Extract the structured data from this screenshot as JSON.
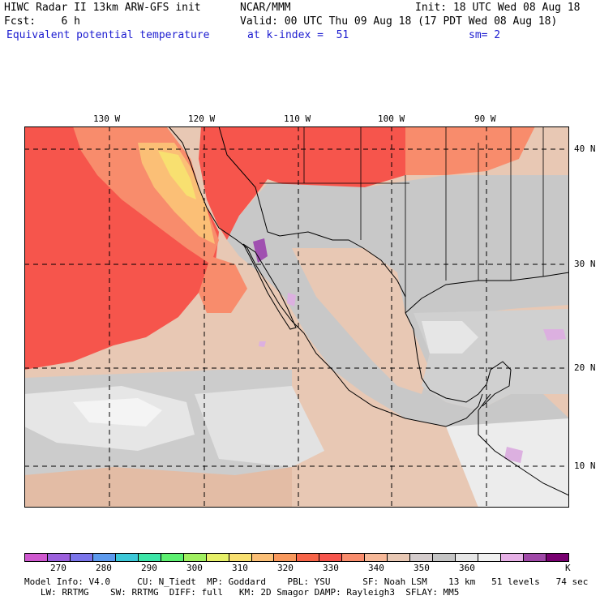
{
  "header": {
    "line1_left": "HIWC Radar II 13km ARW-GFS init",
    "line1_mid": "NCAR/MMM",
    "line1_right": "Init: 18 UTC Wed 08 Aug 18",
    "line2_left": "Fcst:    6 h",
    "line2_right": "Valid: 00 UTC Thu 09 Aug 18 (17 PDT Wed 08 Aug 18)",
    "line3_left": "Equivalent potential temperature",
    "line3_mid": "at k-index =  51",
    "line3_right": "sm= 2"
  },
  "map": {
    "lon_labels": [
      "130 W",
      "120 W",
      "110 W",
      "100 W",
      "90 W"
    ],
    "lat_labels": [
      "40 N",
      "30 N",
      "20 N",
      "10 N"
    ],
    "colors": {
      "ocean_hot": "#f6554c",
      "ocean_warm": "#f88c6c",
      "ocean_yellow": "#f8e070",
      "ocean_orange": "#fbbf76",
      "tan": "#e8c8b4",
      "gray": "#c8c8c8",
      "light_gray": "#e8e8e8",
      "white": "#f7f7f7",
      "lilac": "#dcb0e0",
      "purple": "#a050b0"
    }
  },
  "colorbar": {
    "colors": [
      "#cf58cf",
      "#9c60dd",
      "#7a74ea",
      "#5c9aee",
      "#3cc8d8",
      "#3ce6a8",
      "#5cf070",
      "#a0f060",
      "#e6f068",
      "#f8e070",
      "#fbbf76",
      "#f8985c",
      "#f76448",
      "#f6554c",
      "#f88c6c",
      "#f6b898",
      "#e8c8b4",
      "#d4cccc",
      "#c4c4c4",
      "#e6e6e6",
      "#f0f0f0",
      "#e6b0e6",
      "#a048a8",
      "#780070"
    ],
    "labels": [
      "270",
      "280",
      "290",
      "300",
      "310",
      "320",
      "330",
      "340",
      "350",
      "360"
    ],
    "unit": "K"
  },
  "footer": {
    "line1": "Model Info: V4.0     CU: N_Tiedt  MP: Goddard    PBL: YSU      SF: Noah LSM    13 km   51 levels   74 sec",
    "line2": "   LW: RRTMG    SW: RRTMG  DIFF: full   KM: 2D Smagor DAMP: Rayleigh3  SFLAY: MM5"
  }
}
